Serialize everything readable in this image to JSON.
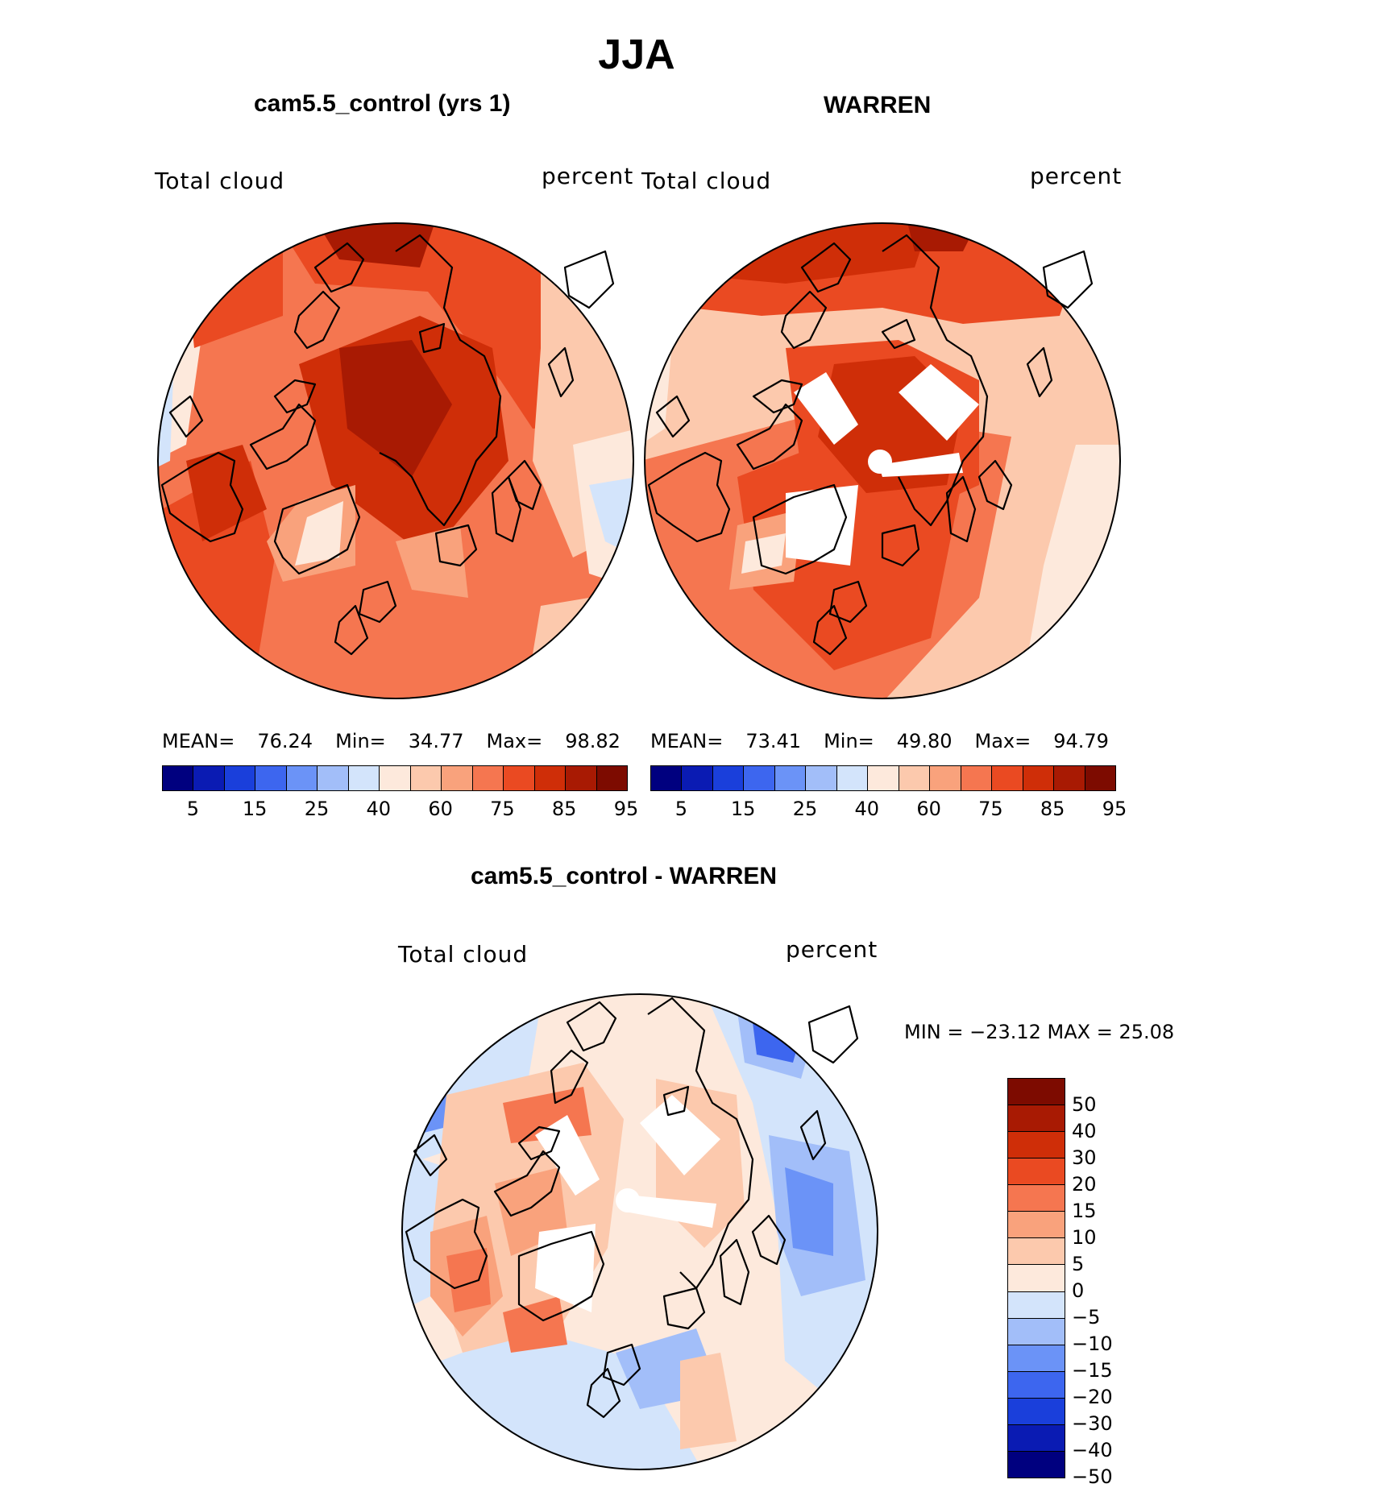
{
  "figure": {
    "title": "JJA"
  },
  "panels": [
    {
      "id": "model",
      "title": "cam5.5_control (yrs 1)",
      "variable": "Total cloud",
      "units": "percent",
      "stats": {
        "mean_label": "MEAN=",
        "mean": "76.24",
        "min_label": "Min=",
        "min": "34.77",
        "max_label": "Max=",
        "max": "98.82"
      }
    },
    {
      "id": "obs",
      "title": "WARREN",
      "variable": "Total cloud",
      "units": "percent",
      "stats": {
        "mean_label": "MEAN=",
        "mean": "73.41",
        "min_label": "Min=",
        "min": "49.80",
        "max_label": "Max=",
        "max": "94.79"
      }
    },
    {
      "id": "diff",
      "title": "cam5.5_control - WARREN",
      "variable": "Total cloud",
      "units": "percent",
      "minmax_text": "MIN = −23.12 MAX =   25.08"
    }
  ],
  "colorbar_abs": {
    "tick_labels": [
      "5",
      "15",
      "25",
      "40",
      "60",
      "75",
      "85",
      "95"
    ],
    "colors": [
      "#00007f",
      "#0a1bb3",
      "#1a3fdb",
      "#3d66ef",
      "#6b93f7",
      "#a2bef9",
      "#d3e4fb",
      "#fde9dc",
      "#fcc9ad",
      "#f9a27c",
      "#f57650",
      "#ea4a22",
      "#cf2e08",
      "#a81a03",
      "#7d0b00"
    ]
  },
  "colorbar_diff": {
    "tick_labels": [
      "50",
      "40",
      "30",
      "20",
      "15",
      "10",
      "5",
      "0",
      "−5",
      "−10",
      "−15",
      "−20",
      "−30",
      "−40",
      "−50"
    ],
    "colors": [
      "#7d0b00",
      "#a81a03",
      "#cf2e08",
      "#ea4a22",
      "#f57650",
      "#f9a27c",
      "#fcc9ad",
      "#fde9dc",
      "#d3e4fb",
      "#a2bef9",
      "#6b93f7",
      "#3d66ef",
      "#1a3fdb",
      "#0a1bb3",
      "#00007f"
    ]
  }
}
